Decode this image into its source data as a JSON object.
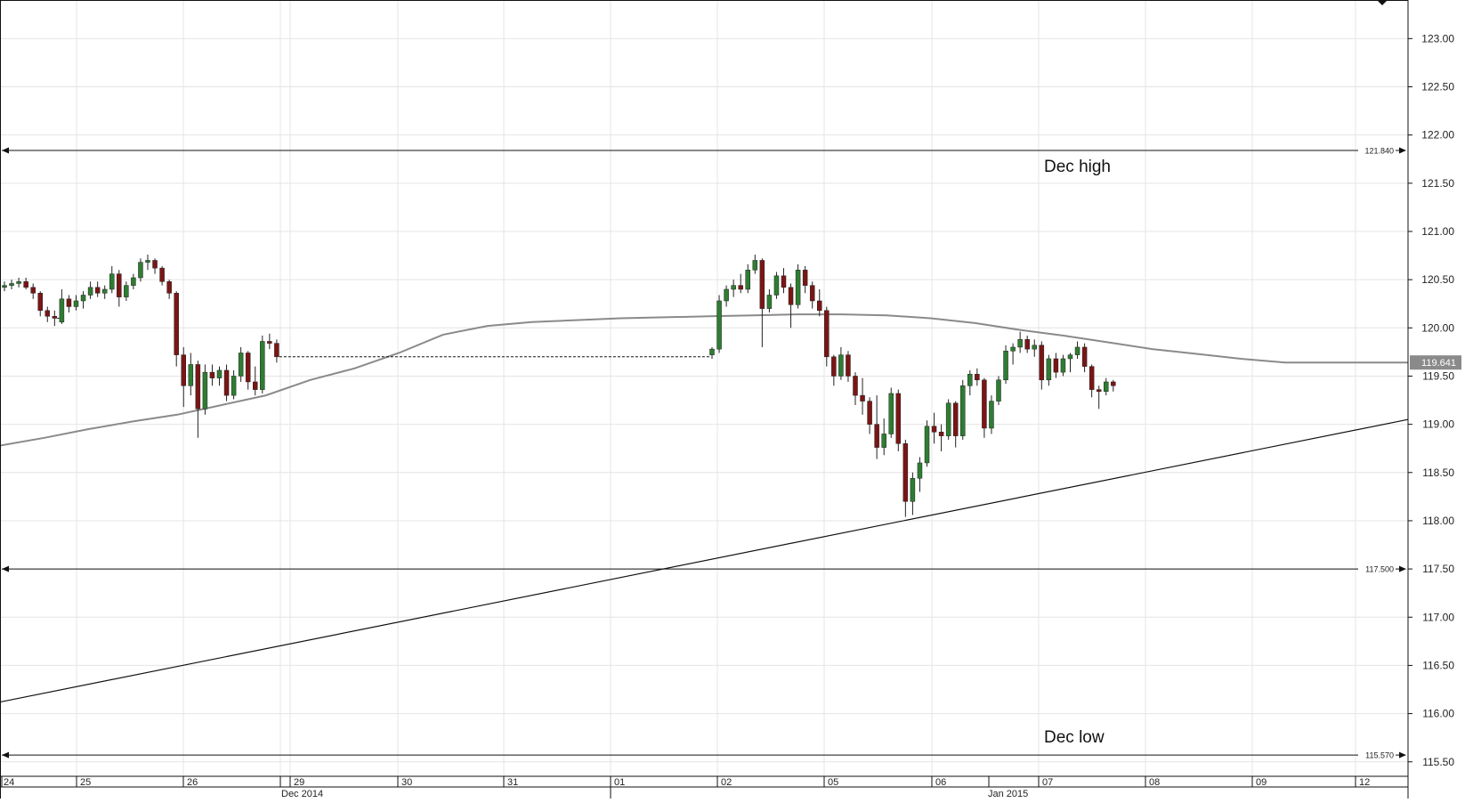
{
  "chart_data": {
    "type": "candlestick",
    "y_axis": {
      "range": [
        115.35,
        123.4
      ],
      "ticks": [
        "123.00",
        "122.50",
        "122.00",
        "121.50",
        "121.00",
        "120.50",
        "120.00",
        "119.50",
        "119.00",
        "118.50",
        "118.00",
        "117.50",
        "117.00",
        "116.50",
        "116.00",
        "115.50"
      ],
      "position": "right"
    },
    "x_axis": {
      "day_labels": [
        "24",
        "25",
        "26",
        "29",
        "30",
        "31",
        "01",
        "02",
        "05",
        "06",
        "07",
        "08",
        "09",
        "12"
      ],
      "month_labels": [
        "Dec 2014",
        "Jan 2015"
      ]
    },
    "grid": true,
    "colors": {
      "up": "#2e7d32",
      "down": "#7b1515",
      "ma": "#8a8a8a",
      "line": "#111111"
    },
    "horizontal_levels": [
      {
        "value": 121.84,
        "label": "121.840"
      },
      {
        "value": 117.5,
        "label": "117.500"
      },
      {
        "value": 115.57,
        "label": "115.570"
      }
    ],
    "annotations": [
      {
        "text": "Dec high",
        "near": 121.84
      },
      {
        "text": "Dec low",
        "near": 115.57
      }
    ],
    "current_price": {
      "value": 119.641,
      "label": "119.641"
    },
    "trendline": {
      "start": 116.12,
      "end": 119.05
    },
    "moving_average": [
      118.78,
      118.86,
      118.95,
      119.03,
      119.1,
      119.2,
      119.3,
      119.46,
      119.58,
      119.74,
      119.93,
      120.02,
      120.06,
      120.08,
      120.1,
      120.11,
      120.12,
      120.13,
      120.14,
      120.14,
      120.13,
      120.1,
      120.05,
      119.98,
      119.92,
      119.85,
      119.78,
      119.73,
      119.68,
      119.64
    ],
    "candles": [
      [
        120.42,
        120.48,
        120.38,
        120.44
      ],
      [
        120.44,
        120.5,
        120.4,
        120.46
      ],
      [
        120.46,
        120.52,
        120.42,
        120.48
      ],
      [
        120.48,
        120.52,
        120.4,
        120.42
      ],
      [
        120.42,
        120.46,
        120.3,
        120.36
      ],
      [
        120.36,
        120.38,
        120.12,
        120.18
      ],
      [
        120.18,
        120.22,
        120.06,
        120.12
      ],
      [
        120.12,
        120.18,
        120.02,
        120.1
      ],
      [
        120.06,
        120.4,
        120.04,
        120.3
      ],
      [
        120.3,
        120.34,
        120.16,
        120.22
      ],
      [
        120.22,
        120.34,
        120.18,
        120.28
      ],
      [
        120.28,
        120.38,
        120.2,
        120.34
      ],
      [
        120.34,
        120.48,
        120.3,
        120.42
      ],
      [
        120.42,
        120.48,
        120.32,
        120.36
      ],
      [
        120.36,
        120.44,
        120.3,
        120.4
      ],
      [
        120.4,
        120.64,
        120.36,
        120.56
      ],
      [
        120.56,
        120.6,
        120.22,
        120.32
      ],
      [
        120.32,
        120.48,
        120.28,
        120.44
      ],
      [
        120.44,
        120.56,
        120.4,
        120.52
      ],
      [
        120.52,
        120.72,
        120.48,
        120.68
      ],
      [
        120.68,
        120.76,
        120.6,
        120.7
      ],
      [
        120.7,
        120.72,
        120.56,
        120.62
      ],
      [
        120.62,
        120.64,
        120.44,
        120.48
      ],
      [
        120.48,
        120.5,
        120.3,
        120.36
      ],
      [
        120.36,
        120.38,
        119.6,
        119.72
      ],
      [
        119.72,
        119.8,
        119.18,
        119.4
      ],
      [
        119.4,
        119.74,
        119.3,
        119.62
      ],
      [
        119.62,
        119.66,
        118.86,
        119.16
      ],
      [
        119.16,
        119.62,
        119.1,
        119.54
      ],
      [
        119.54,
        119.62,
        119.4,
        119.48
      ],
      [
        119.48,
        119.6,
        119.4,
        119.56
      ],
      [
        119.56,
        119.62,
        119.24,
        119.3
      ],
      [
        119.3,
        119.56,
        119.26,
        119.5
      ],
      [
        119.5,
        119.8,
        119.44,
        119.74
      ],
      [
        119.74,
        119.76,
        119.36,
        119.44
      ],
      [
        119.44,
        119.6,
        119.3,
        119.36
      ],
      [
        119.36,
        119.92,
        119.32,
        119.86
      ],
      [
        119.86,
        119.94,
        119.78,
        119.84
      ],
      [
        119.84,
        119.88,
        119.64,
        119.7
      ],
      [
        119.72,
        119.8,
        119.68,
        119.78
      ],
      [
        119.78,
        120.34,
        119.74,
        120.28
      ],
      [
        120.28,
        120.44,
        120.22,
        120.4
      ],
      [
        120.4,
        120.5,
        120.32,
        120.44
      ],
      [
        120.44,
        120.56,
        120.36,
        120.4
      ],
      [
        120.4,
        120.66,
        120.36,
        120.6
      ],
      [
        120.6,
        120.76,
        120.56,
        120.7
      ],
      [
        120.7,
        120.72,
        119.8,
        120.2
      ],
      [
        120.2,
        120.4,
        120.16,
        120.34
      ],
      [
        120.34,
        120.58,
        120.3,
        120.54
      ],
      [
        120.54,
        120.62,
        120.36,
        120.42
      ],
      [
        120.42,
        120.46,
        120.0,
        120.24
      ],
      [
        120.24,
        120.66,
        120.2,
        120.6
      ],
      [
        120.6,
        120.64,
        120.36,
        120.44
      ],
      [
        120.44,
        120.48,
        120.2,
        120.28
      ],
      [
        120.28,
        120.4,
        120.12,
        120.18
      ],
      [
        120.18,
        120.22,
        119.6,
        119.7
      ],
      [
        119.7,
        119.72,
        119.4,
        119.5
      ],
      [
        119.5,
        119.8,
        119.46,
        119.72
      ],
      [
        119.72,
        119.76,
        119.44,
        119.5
      ],
      [
        119.5,
        119.54,
        119.2,
        119.3
      ],
      [
        119.3,
        119.48,
        119.1,
        119.24
      ],
      [
        119.24,
        119.28,
        118.9,
        119.0
      ],
      [
        119.0,
        119.3,
        118.64,
        118.76
      ],
      [
        118.76,
        119.06,
        118.68,
        118.9
      ],
      [
        118.9,
        119.38,
        118.86,
        119.32
      ],
      [
        119.32,
        119.36,
        118.72,
        118.8
      ],
      [
        118.8,
        118.84,
        118.04,
        118.2
      ],
      [
        118.2,
        118.5,
        118.06,
        118.44
      ],
      [
        118.44,
        118.66,
        118.3,
        118.6
      ],
      [
        118.6,
        119.04,
        118.56,
        118.98
      ],
      [
        118.98,
        119.12,
        118.8,
        118.92
      ],
      [
        118.92,
        119.0,
        118.72,
        118.88
      ],
      [
        118.88,
        119.26,
        118.84,
        119.22
      ],
      [
        119.22,
        119.24,
        118.76,
        118.88
      ],
      [
        118.88,
        119.46,
        118.84,
        119.4
      ],
      [
        119.4,
        119.56,
        119.3,
        119.52
      ],
      [
        119.52,
        119.58,
        119.4,
        119.46
      ],
      [
        119.46,
        119.48,
        118.86,
        118.96
      ],
      [
        118.96,
        119.3,
        118.9,
        119.24
      ],
      [
        119.24,
        119.5,
        119.2,
        119.46
      ],
      [
        119.46,
        119.82,
        119.42,
        119.76
      ],
      [
        119.76,
        119.84,
        119.62,
        119.8
      ],
      [
        119.8,
        119.96,
        119.74,
        119.88
      ],
      [
        119.88,
        119.92,
        119.74,
        119.78
      ],
      [
        119.78,
        119.88,
        119.7,
        119.82
      ],
      [
        119.82,
        119.86,
        119.36,
        119.46
      ],
      [
        119.46,
        119.72,
        119.4,
        119.68
      ],
      [
        119.68,
        119.74,
        119.48,
        119.54
      ],
      [
        119.54,
        119.72,
        119.5,
        119.68
      ],
      [
        119.68,
        119.74,
        119.54,
        119.72
      ],
      [
        119.72,
        119.86,
        119.68,
        119.8
      ],
      [
        119.8,
        119.84,
        119.54,
        119.6
      ],
      [
        119.6,
        119.62,
        119.28,
        119.36
      ],
      [
        119.36,
        119.4,
        119.16,
        119.34
      ],
      [
        119.34,
        119.48,
        119.3,
        119.44
      ],
      [
        119.44,
        119.46,
        119.34,
        119.4
      ]
    ]
  }
}
